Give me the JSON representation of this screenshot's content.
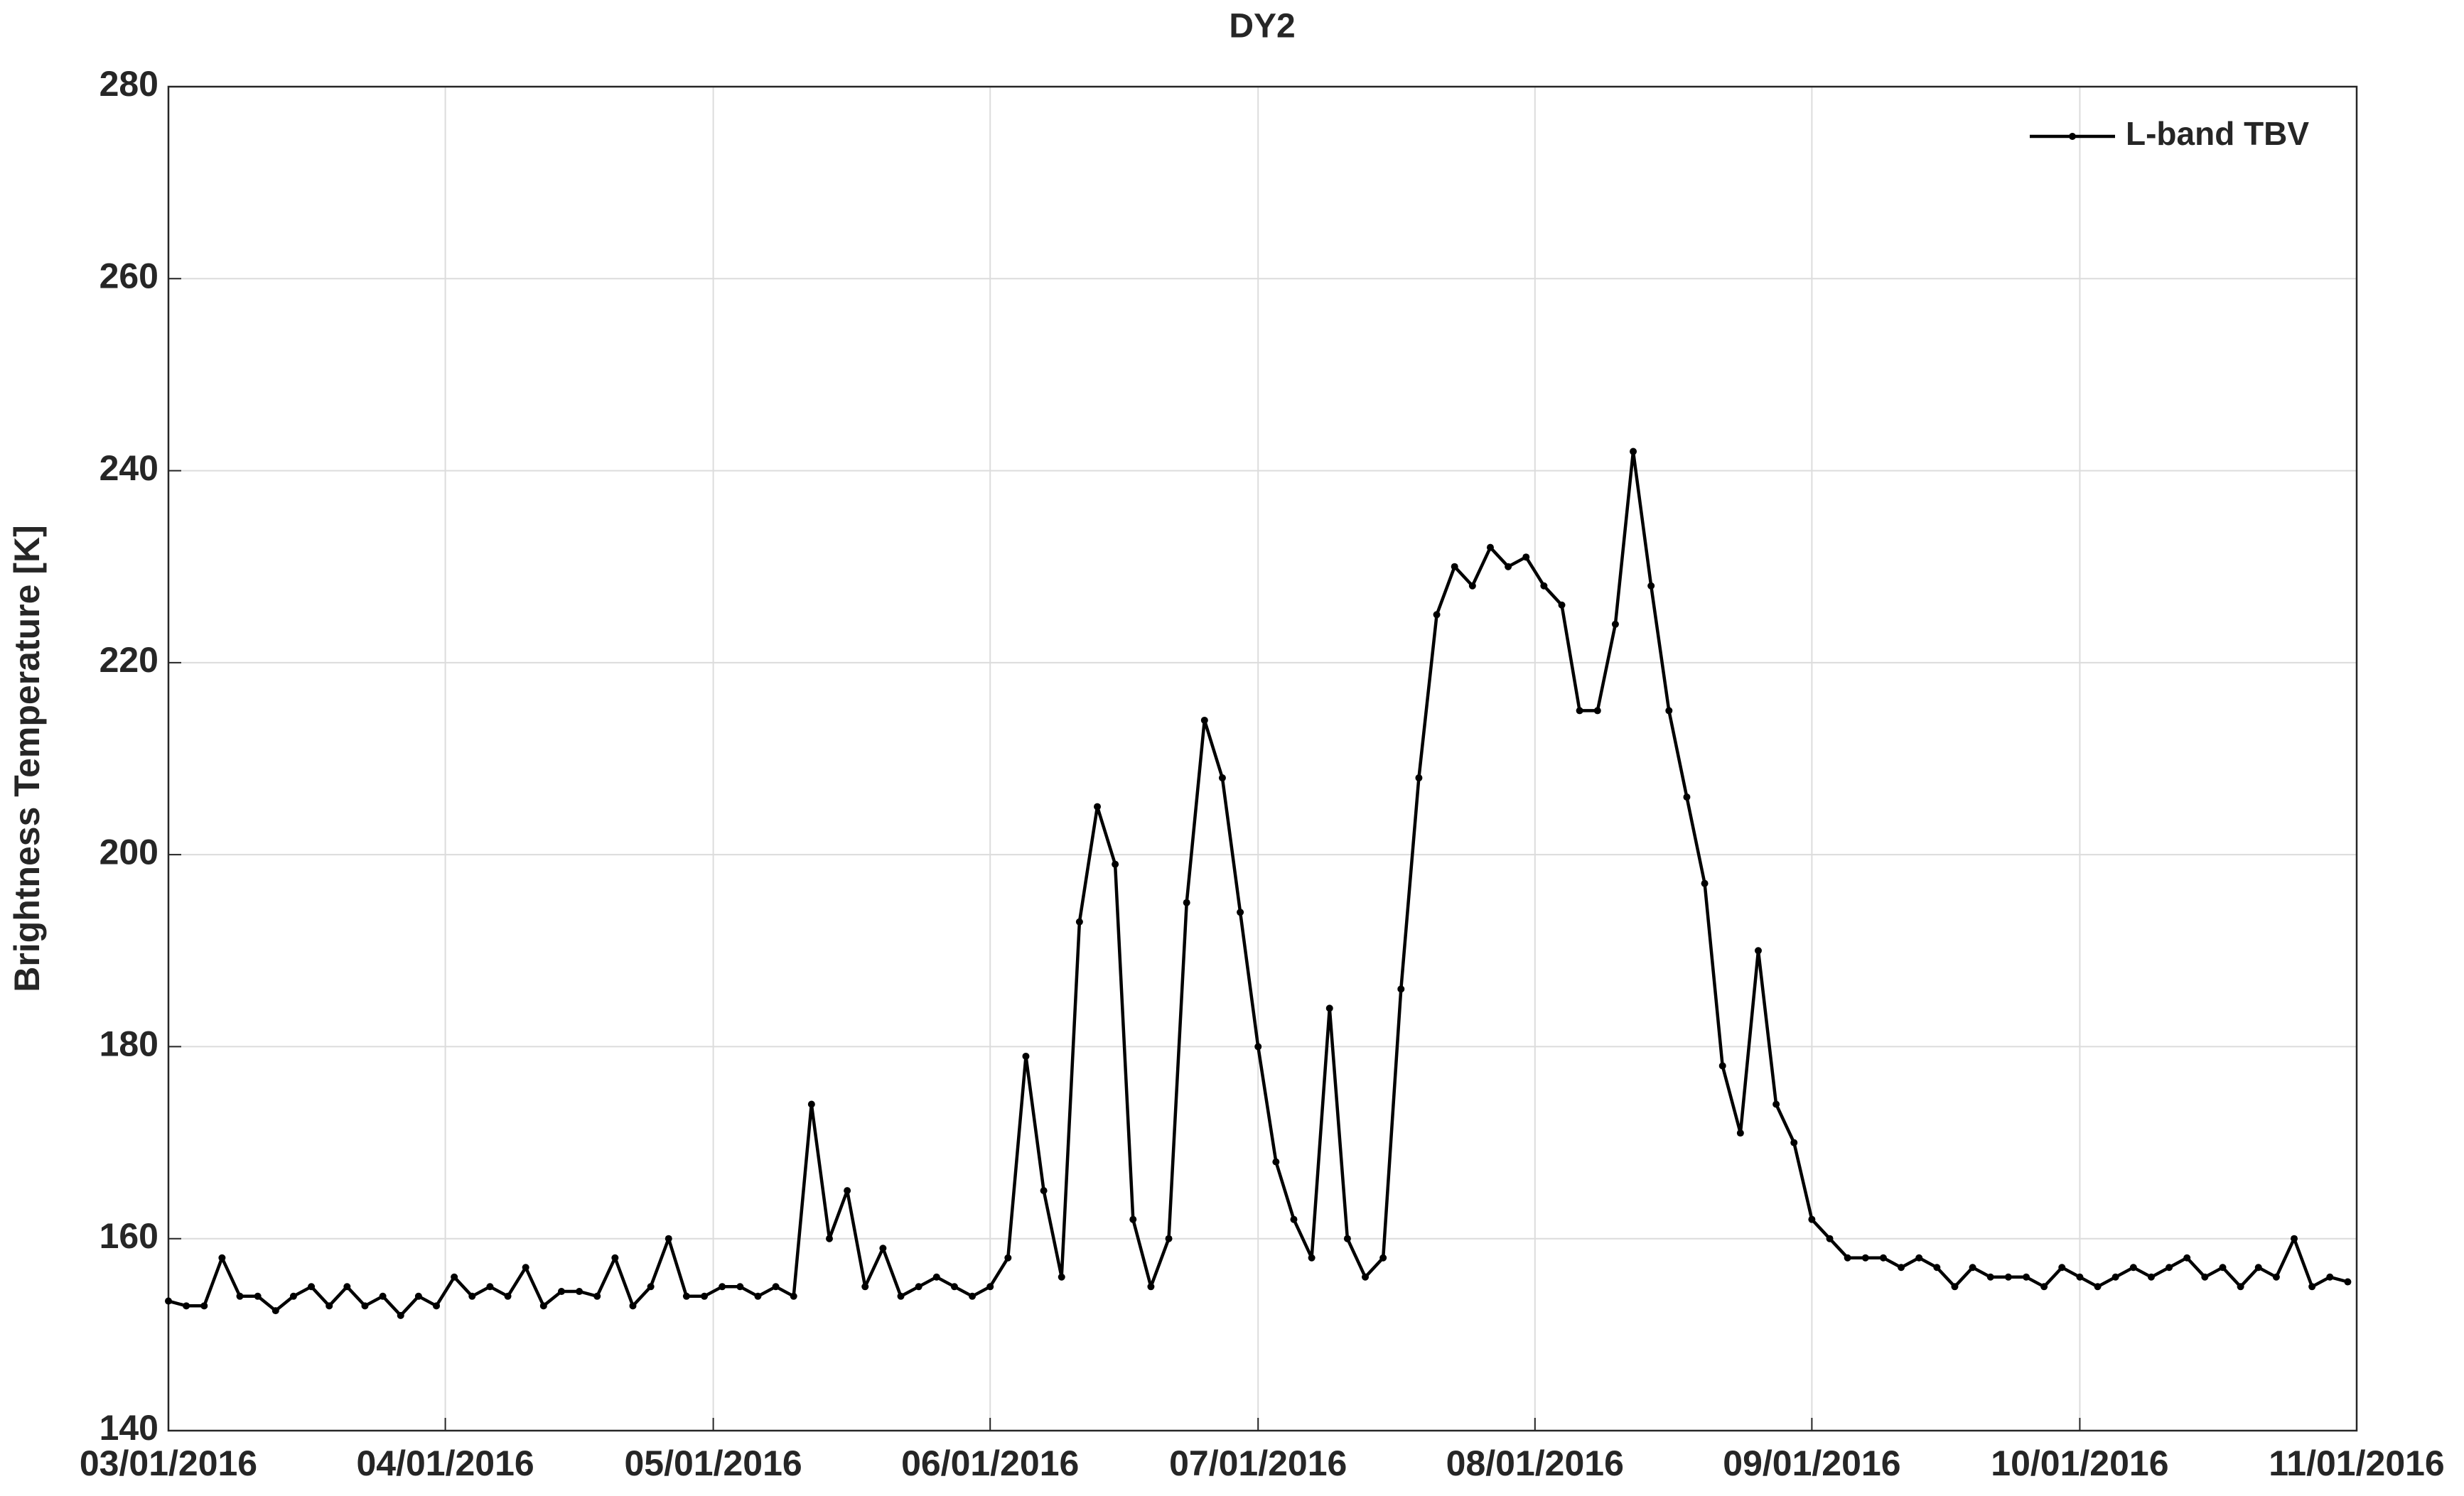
{
  "chart_data": {
    "type": "line",
    "title": "DY2",
    "ylabel": "Brightness Temperature [K]",
    "xlim": [
      "2016-03-01",
      "2016-11-01"
    ],
    "xticks": [
      {
        "value": "2016-03-01",
        "label": "03/01/2016"
      },
      {
        "value": "2016-04-01",
        "label": "04/01/2016"
      },
      {
        "value": "2016-05-01",
        "label": "05/01/2016"
      },
      {
        "value": "2016-06-01",
        "label": "06/01/2016"
      },
      {
        "value": "2016-07-01",
        "label": "07/01/2016"
      },
      {
        "value": "2016-08-01",
        "label": "08/01/2016"
      },
      {
        "value": "2016-09-01",
        "label": "09/01/2016"
      },
      {
        "value": "2016-10-01",
        "label": "10/01/2016"
      },
      {
        "value": "2016-11-01",
        "label": "11/01/2016"
      }
    ],
    "ylim": [
      140,
      280
    ],
    "yticks": [
      140,
      160,
      180,
      200,
      220,
      240,
      260,
      280
    ],
    "grid": true,
    "legend": "top-right",
    "x": [
      "2016-03-01",
      "2016-03-03",
      "2016-03-05",
      "2016-03-07",
      "2016-03-09",
      "2016-03-11",
      "2016-03-13",
      "2016-03-15",
      "2016-03-17",
      "2016-03-19",
      "2016-03-21",
      "2016-03-23",
      "2016-03-25",
      "2016-03-27",
      "2016-03-29",
      "2016-03-31",
      "2016-04-02",
      "2016-04-04",
      "2016-04-06",
      "2016-04-08",
      "2016-04-10",
      "2016-04-12",
      "2016-04-14",
      "2016-04-16",
      "2016-04-18",
      "2016-04-20",
      "2016-04-22",
      "2016-04-24",
      "2016-04-26",
      "2016-04-28",
      "2016-04-30",
      "2016-05-02",
      "2016-05-04",
      "2016-05-06",
      "2016-05-08",
      "2016-05-10",
      "2016-05-12",
      "2016-05-14",
      "2016-05-16",
      "2016-05-18",
      "2016-05-20",
      "2016-05-22",
      "2016-05-24",
      "2016-05-26",
      "2016-05-28",
      "2016-05-30",
      "2016-06-01",
      "2016-06-03",
      "2016-06-05",
      "2016-06-07",
      "2016-06-09",
      "2016-06-11",
      "2016-06-13",
      "2016-06-15",
      "2016-06-17",
      "2016-06-19",
      "2016-06-21",
      "2016-06-23",
      "2016-06-25",
      "2016-06-27",
      "2016-06-29",
      "2016-07-01",
      "2016-07-03",
      "2016-07-05",
      "2016-07-07",
      "2016-07-09",
      "2016-07-11",
      "2016-07-13",
      "2016-07-15",
      "2016-07-17",
      "2016-07-19",
      "2016-07-21",
      "2016-07-23",
      "2016-07-25",
      "2016-07-27",
      "2016-07-29",
      "2016-07-31",
      "2016-08-02",
      "2016-08-04",
      "2016-08-06",
      "2016-08-08",
      "2016-08-10",
      "2016-08-12",
      "2016-08-14",
      "2016-08-16",
      "2016-08-18",
      "2016-08-20",
      "2016-08-22",
      "2016-08-24",
      "2016-08-26",
      "2016-08-28",
      "2016-08-30",
      "2016-09-01",
      "2016-09-03",
      "2016-09-05",
      "2016-09-07",
      "2016-09-09",
      "2016-09-11",
      "2016-09-13",
      "2016-09-15",
      "2016-09-17",
      "2016-09-19",
      "2016-09-21",
      "2016-09-23",
      "2016-09-25",
      "2016-09-27",
      "2016-09-29",
      "2016-10-01",
      "2016-10-03",
      "2016-10-05",
      "2016-10-07",
      "2016-10-09",
      "2016-10-11",
      "2016-10-13",
      "2016-10-15",
      "2016-10-17",
      "2016-10-19",
      "2016-10-21",
      "2016-10-23",
      "2016-10-25",
      "2016-10-27",
      "2016-10-29",
      "2016-10-31"
    ],
    "series": [
      {
        "name": "L-band TBV",
        "color": "#000000",
        "values": [
          153.5,
          153,
          153,
          158,
          154,
          154,
          152.5,
          154,
          155,
          153,
          155,
          153,
          154,
          152,
          154,
          153,
          156,
          154,
          155,
          154,
          157,
          153,
          154.5,
          154.5,
          154,
          158,
          153,
          155,
          160,
          154,
          154,
          155,
          155,
          154,
          155,
          154,
          174,
          160,
          165,
          155,
          159,
          154,
          155,
          156,
          155,
          154,
          155,
          158,
          179,
          165,
          156,
          193,
          205,
          199,
          162,
          155,
          160,
          195,
          214,
          208,
          194,
          180,
          168,
          162,
          158,
          184,
          160,
          156,
          158,
          186,
          208,
          225,
          230,
          228,
          232,
          230,
          231,
          228,
          226,
          215,
          215,
          224,
          242,
          228,
          215,
          206,
          197,
          178,
          171,
          190,
          174,
          170,
          162,
          160,
          158,
          158,
          158,
          157,
          158,
          157,
          155,
          157,
          156,
          156,
          156,
          155,
          157,
          156,
          155,
          156,
          157,
          156,
          157,
          158,
          156,
          157,
          155,
          157,
          156,
          160,
          155,
          156,
          155.5
        ]
      }
    ]
  }
}
